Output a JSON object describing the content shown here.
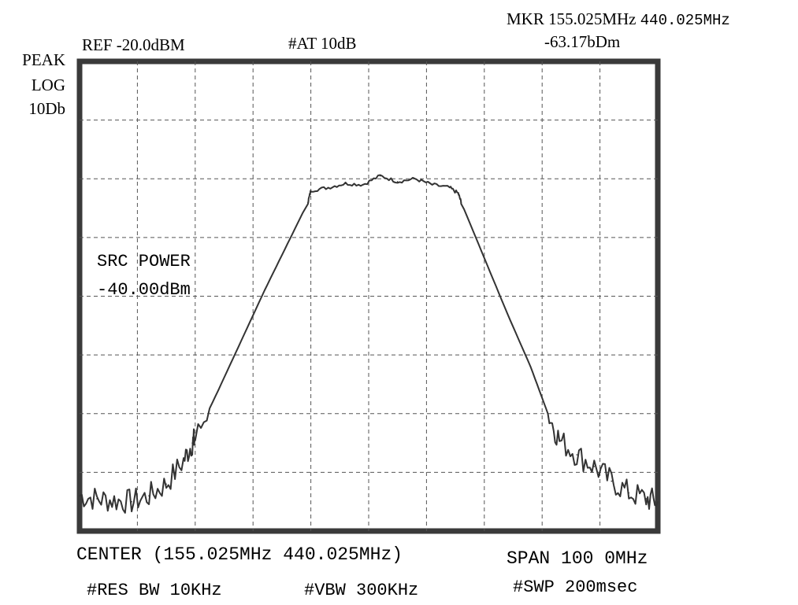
{
  "header": {
    "ref_level": "REF -20.0dBM",
    "attenuation": "#AT 10dB",
    "marker_label": "MKR 155.025MHz",
    "marker_freq_alt": "440.025MHz",
    "marker_amplitude": "-63.17bDm"
  },
  "scale": {
    "detector": "PEAK",
    "scale_type": "LOG",
    "scale_div": "10Db"
  },
  "annotation": {
    "source_label": "SRC POWER",
    "source_value": "-40.00dBm"
  },
  "footer": {
    "center": "CENTER (155.025MHz 440.025MHz)",
    "span": "SPAN 100 0MHz",
    "res_bw": "#RES BW 10KHz",
    "vbw": "#VBW 300KHz",
    "sweep": "#SWP 200msec"
  },
  "chart_data": {
    "type": "line",
    "title": "",
    "xlabel": "",
    "ylabel": "",
    "x_divisions": 10,
    "y_divisions": 8,
    "xlim": [
      0,
      10
    ],
    "ylim": [
      -100,
      -20
    ],
    "grid": true,
    "grid_style": "dashed",
    "trace_color": "#333333",
    "series": [
      {
        "name": "",
        "x": [
          0.0,
          0.3,
          0.6,
          0.9,
          1.2,
          1.5,
          1.8,
          1.95,
          2.0,
          2.4,
          2.8,
          3.2,
          3.6,
          3.95,
          4.0,
          4.3,
          4.6,
          4.9,
          5.2,
          5.5,
          5.8,
          6.1,
          6.4,
          6.55,
          6.6,
          7.0,
          7.4,
          7.8,
          8.1,
          8.3,
          8.6,
          8.9,
          9.2,
          9.5,
          9.8,
          10.0
        ],
        "y": [
          -94,
          -94.5,
          -94.8,
          -95,
          -94,
          -92,
          -88,
          -85,
          -84.3,
          -76,
          -67.5,
          -59,
          -51,
          -44,
          -42,
          -41.5,
          -40.8,
          -41,
          -39.5,
          -40.5,
          -40,
          -41,
          -41.5,
          -42.5,
          -44,
          -53.5,
          -63,
          -72,
          -80,
          -84.5,
          -87,
          -89,
          -91.5,
          -93.5,
          -94.5,
          -95
        ]
      }
    ]
  }
}
